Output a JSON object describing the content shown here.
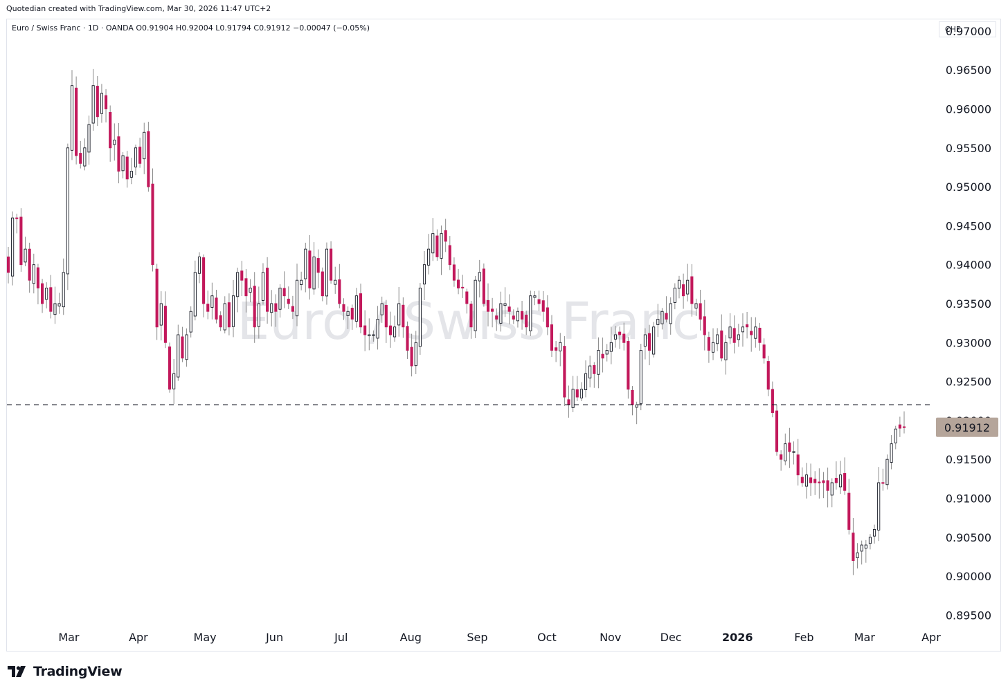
{
  "attribution": "Quotedian created with TradingView.com, Mar 30, 2026 11:47 UTC+2",
  "legend": "Euro / Swiss Franc · 1D · OANDA  O0.91904  H0.92004  L0.91794  C0.91912  −0.00047 (−0.05%)",
  "currency": "CHF",
  "watermark": "Euro / Swiss Franc",
  "brand": "TradingView",
  "colors": {
    "up": "#131722",
    "down": "#c2185b",
    "wick": "#8a8a8a",
    "last_price_bg": "#b5a59a"
  },
  "chart_data": {
    "type": "candlestick",
    "symbol": "EUR/CHF",
    "interval": "1D",
    "ylim": [
      0.8945,
      0.9715
    ],
    "y_ticks": [
      0.895,
      0.9,
      0.905,
      0.91,
      0.915,
      0.92,
      0.925,
      0.93,
      0.935,
      0.94,
      0.945,
      0.95,
      0.955,
      0.96,
      0.965,
      0.97
    ],
    "y_tick_labels": [
      "0.89500",
      "0.90000",
      "0.90500",
      "0.91000",
      "0.91500",
      "0.92000",
      "0.92500",
      "0.93000",
      "0.93500",
      "0.94000",
      "0.94500",
      "0.95000",
      "0.95500",
      "0.96000",
      "0.96500",
      "0.97000"
    ],
    "x_labels": [
      "Mar",
      "Apr",
      "May",
      "Jun",
      "Jul",
      "Aug",
      "Sep",
      "Oct",
      "Nov",
      "Dec",
      "2026",
      "Feb",
      "Mar",
      "Apr"
    ],
    "x_label_days": [
      20,
      43,
      65,
      88,
      110,
      133,
      155,
      178,
      199,
      219,
      241,
      263,
      283,
      305
    ],
    "total_days": 297,
    "horizontal_line": 0.922,
    "last_price": 0.91912,
    "last_price_label": "0.91912",
    "ohlc": {
      "open": 0.91904,
      "high": 0.92004,
      "low": 0.91794,
      "close": 0.91912,
      "change": -0.00047,
      "change_pct": -0.05
    },
    "closes": [
      0.939,
      0.946,
      0.946,
      0.94,
      0.942,
      0.938,
      0.94,
      0.937,
      0.935,
      0.937,
      0.934,
      0.935,
      0.935,
      0.939,
      0.955,
      0.963,
      0.954,
      0.953,
      0.955,
      0.958,
      0.963,
      0.959,
      0.962,
      0.96,
      0.955,
      0.956,
      0.952,
      0.954,
      0.951,
      0.952,
      0.955,
      0.953,
      0.957,
      0.95,
      0.94,
      0.932,
      0.935,
      0.93,
      0.924,
      0.926,
      0.931,
      0.928,
      0.931,
      0.934,
      0.939,
      0.941,
      0.935,
      0.934,
      0.936,
      0.933,
      0.932,
      0.935,
      0.932,
      0.936,
      0.939,
      0.938,
      0.936,
      0.937,
      0.932,
      0.935,
      0.939,
      0.934,
      0.935,
      0.934,
      0.937,
      0.936,
      0.935,
      0.934,
      0.938,
      0.938,
      0.942,
      0.937,
      0.941,
      0.939,
      0.936,
      0.942,
      0.938,
      0.938,
      0.935,
      0.934,
      0.934,
      0.933,
      0.936,
      0.932,
      0.931,
      0.931,
      0.931,
      0.933,
      0.935,
      0.932,
      0.931,
      0.932,
      0.935,
      0.932,
      0.929,
      0.927,
      0.93,
      0.937,
      0.94,
      0.942,
      0.944,
      0.941,
      0.944,
      0.943,
      0.94,
      0.938,
      0.937,
      0.937,
      0.935,
      0.932,
      0.938,
      0.939,
      0.935,
      0.934,
      0.934,
      0.933,
      0.935,
      0.935,
      0.934,
      0.933,
      0.934,
      0.933,
      0.932,
      0.936,
      0.936,
      0.935,
      0.934,
      0.932,
      0.929,
      0.929,
      0.93,
      0.923,
      0.922,
      0.924,
      0.923,
      0.924,
      0.926,
      0.927,
      0.926,
      0.929,
      0.928,
      0.929,
      0.93,
      0.931,
      0.931,
      0.93,
      0.924,
      0.922,
      0.922,
      0.929,
      0.931,
      0.929,
      0.932,
      0.933,
      0.934,
      0.933,
      0.935,
      0.937,
      0.938,
      0.936,
      0.938,
      0.935,
      0.935,
      0.933,
      0.931,
      0.929,
      0.93,
      0.931,
      0.928,
      0.93,
      0.932,
      0.93,
      0.931,
      0.932,
      0.932,
      0.931,
      0.932,
      0.93,
      0.928,
      0.924,
      0.921,
      0.916,
      0.915,
      0.917,
      0.916,
      0.916,
      0.913,
      0.912,
      0.913,
      0.912,
      0.912,
      0.912,
      0.912,
      0.911,
      0.912,
      0.912,
      0.913,
      0.911,
      0.906,
      0.902,
      0.903,
      0.904,
      0.904,
      0.905,
      0.906,
      0.912,
      0.912,
      0.915,
      0.917,
      0.9189,
      0.919,
      0.91912
    ]
  }
}
